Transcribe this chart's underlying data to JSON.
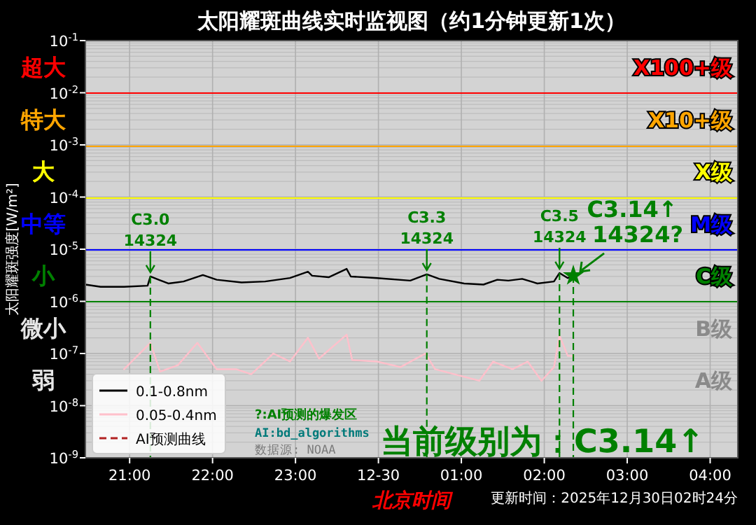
{
  "chart_data": {
    "type": "line",
    "title": "太阳耀斑曲线实时监视图（约1分钟更新1次）",
    "xlabel": "北京时间",
    "ylabel": "太阳耀斑强度[W/m²]",
    "log": "y",
    "grid": true,
    "legend": "bottom left",
    "xlim": [
      "2025-12-29T20:28",
      "2025-12-30T04:20"
    ],
    "xticks": [
      {
        "value": "2025-12-29T21:00",
        "label": "21:00"
      },
      {
        "value": "2025-12-29T22:00",
        "label": "22:00"
      },
      {
        "value": "2025-12-29T23:00",
        "label": "23:00"
      },
      {
        "value": "2025-12-30T00:00",
        "label": "12-30"
      },
      {
        "value": "2025-12-30T01:00",
        "label": "01:00"
      },
      {
        "value": "2025-12-30T02:00",
        "label": "02:00"
      },
      {
        "value": "2025-12-30T03:00",
        "label": "03:00"
      },
      {
        "value": "2025-12-30T04:00",
        "label": "04:00"
      }
    ],
    "ylim": [
      1e-09,
      0.1
    ],
    "yticks": [
      {
        "value": 1e-09,
        "label": "10$^{-9}$"
      },
      {
        "value": 1e-08,
        "label": "10$^{-8}$"
      },
      {
        "value": 1e-07,
        "label": "10$^{-7}$"
      },
      {
        "value": 1e-06,
        "label": "10$^{-6}$"
      },
      {
        "value": 1e-05,
        "label": "10$^{-5}$"
      },
      {
        "value": 0.0001,
        "label": "10$^{-4}$"
      },
      {
        "value": 0.001,
        "label": "10$^{-3}$"
      },
      {
        "value": 0.01,
        "label": "10$^{-2}$"
      },
      {
        "value": 0.1,
        "label": "10$^{-1}$"
      }
    ],
    "series": [
      {
        "name": "0.1-0.8nm",
        "type": "line",
        "color": "#000000",
        "x": [
          "2025-12-29T20:28",
          "2025-12-29T20:39",
          "2025-12-29T20:56",
          "2025-12-29T21:13",
          "2025-12-29T21:15",
          "2025-12-29T21:21",
          "2025-12-29T21:28",
          "2025-12-29T21:39",
          "2025-12-29T21:53",
          "2025-12-29T22:03",
          "2025-12-29T22:21",
          "2025-12-29T22:38",
          "2025-12-29T22:56",
          "2025-12-29T23:09",
          "2025-12-29T23:12",
          "2025-12-29T23:24",
          "2025-12-29T23:37",
          "2025-12-29T23:40",
          "2025-12-29T23:59",
          "2025-12-30T00:23",
          "2025-12-30T00:35",
          "2025-12-30T00:44",
          "2025-12-30T01:02",
          "2025-12-30T01:16",
          "2025-12-30T01:26",
          "2025-12-30T01:34",
          "2025-12-30T01:44",
          "2025-12-30T01:55",
          "2025-12-30T02:07",
          "2025-12-30T02:11",
          "2025-12-30T02:17",
          "2025-12-30T02:21"
        ],
        "values": [
          2.1e-06,
          1.9e-06,
          1.9e-06,
          2e-06,
          3e-06,
          2.6e-06,
          2.2e-06,
          2.4e-06,
          3.2e-06,
          2.6e-06,
          2.3e-06,
          2.4e-06,
          2.8e-06,
          3.7e-06,
          3.1e-06,
          2.9e-06,
          4.2e-06,
          3e-06,
          2.8e-06,
          2.5e-06,
          3.3e-06,
          2.7e-06,
          2.2e-06,
          2.1e-06,
          2.6e-06,
          2.5e-06,
          2.7e-06,
          2.2e-06,
          2.4e-06,
          3.5e-06,
          2.8e-06,
          3.1e-06
        ]
      },
      {
        "name": "0.05-0.4nm",
        "type": "line",
        "color": "#ffc0cb",
        "x": [
          "2025-12-29T20:56",
          "2025-12-29T21:15",
          "2025-12-29T21:22",
          "2025-12-29T21:35",
          "2025-12-29T21:49",
          "2025-12-29T22:03",
          "2025-12-29T22:17",
          "2025-12-29T22:28",
          "2025-12-29T22:44",
          "2025-12-29T22:56",
          "2025-12-29T23:09",
          "2025-12-29T23:17",
          "2025-12-29T23:37",
          "2025-12-29T23:41",
          "2025-12-29T23:59",
          "2025-12-30T00:16",
          "2025-12-30T00:34",
          "2025-12-30T00:41",
          "2025-12-30T00:55",
          "2025-12-30T01:13",
          "2025-12-30T01:23",
          "2025-12-30T01:37",
          "2025-12-30T01:48",
          "2025-12-30T01:58",
          "2025-12-30T02:07",
          "2025-12-30T02:11",
          "2025-12-30T02:17",
          "2025-12-30T02:20"
        ],
        "values": [
          5e-08,
          1.6e-07,
          4.5e-08,
          6e-08,
          1.6e-07,
          5e-08,
          5e-08,
          4e-08,
          1e-07,
          7e-08,
          2e-07,
          8e-08,
          2.3e-07,
          7.5e-08,
          7e-08,
          5.5e-08,
          1e-07,
          5e-08,
          4e-08,
          3e-08,
          7e-08,
          5e-08,
          7e-08,
          3e-08,
          5.5e-08,
          2.2e-07,
          9e-08,
          9e-08
        ]
      },
      {
        "name": "AI预测曲线",
        "type": "line",
        "color": "#b22222",
        "line_style": "dashed"
      },
      {
        "type": "scatter",
        "color": "#008000",
        "marker": "star",
        "x": [
          "2025-12-30T02:21"
        ],
        "values": [
          3.1e-06
        ]
      }
    ],
    "ref_lines": [
      {
        "axis": "y",
        "value": 0.01,
        "label": "X100+级",
        "color": "#ff0000"
      },
      {
        "axis": "y",
        "value": 0.001,
        "label": "X10+级",
        "color": "#ffa500"
      },
      {
        "axis": "y",
        "value": 0.0001,
        "label": "X级",
        "color": "#ffff00"
      },
      {
        "axis": "y",
        "value": 1e-05,
        "label": "M级",
        "color": "#0000ff"
      },
      {
        "axis": "y",
        "value": 1e-06,
        "label": "C级",
        "color": "#008000"
      },
      {
        "axis": "x",
        "value": "2025-12-29T21:15",
        "label": "C3.0\n14324",
        "color": "#008000",
        "line_style": "dashed"
      },
      {
        "axis": "x",
        "value": "2025-12-30T00:35",
        "label": "C3.3\n14324",
        "color": "#008000",
        "line_style": "dashed"
      },
      {
        "axis": "x",
        "value": "2025-12-30T02:11",
        "label": "C3.5\n14324",
        "color": "#008000",
        "line_style": "dashed"
      },
      {
        "axis": "x",
        "value": "2025-12-30T02:21",
        "color": "#008000",
        "line_style": "dashed"
      }
    ],
    "annotations": [
      "超大",
      "特大",
      "大",
      "中等",
      "小",
      "微小",
      "弱",
      "B级",
      "A级",
      {
        "text": "C3.14↑\n14324?",
        "x": "2025-12-30T02:21",
        "y": 3.1e-06
      },
      "?:AI预测的爆发区",
      "AI:bd_algorithms",
      "数据源: NOAA",
      "当前级别为：C3.14↑",
      "更新时间：2025年12月30日02时24分"
    ]
  }
}
